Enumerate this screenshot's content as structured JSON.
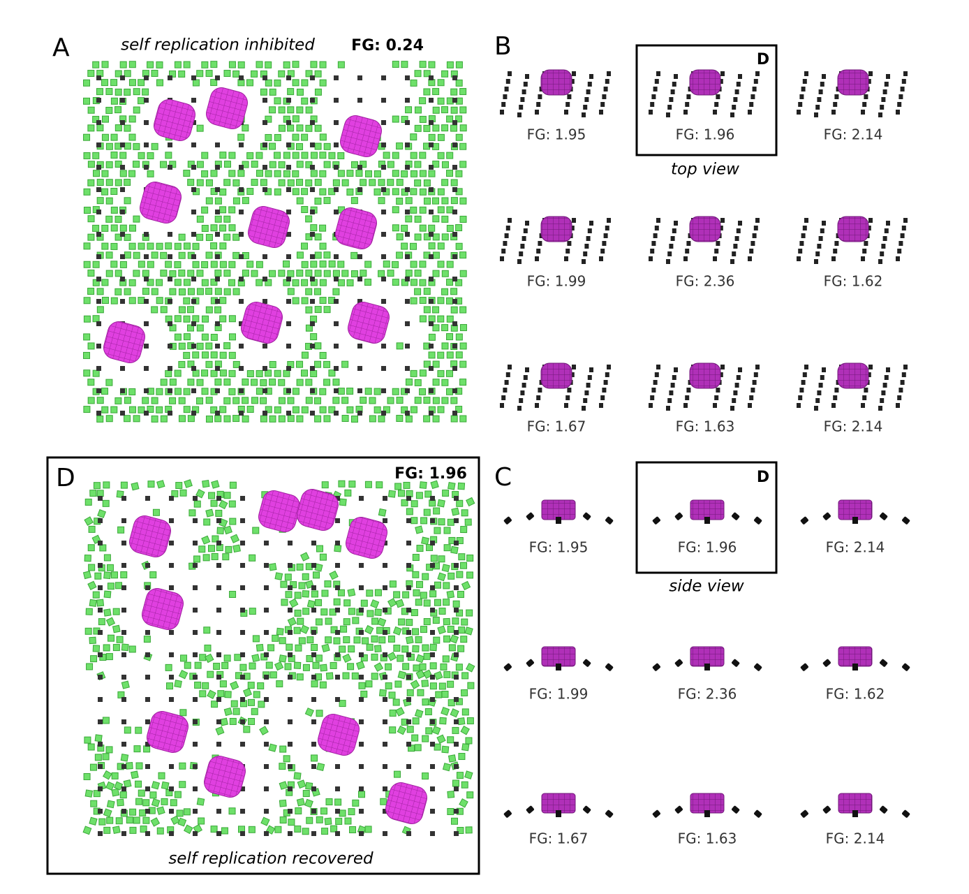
{
  "panels": {
    "A": {
      "label": "A",
      "caption": "self replication inhibited",
      "fg": "FG: 0.24"
    },
    "B": {
      "label": "B",
      "highlight": "D",
      "view": "top view",
      "items": [
        "FG: 1.95",
        "FG: 1.96",
        "FG: 2.14",
        "FG: 1.99",
        "FG: 2.36",
        "FG: 1.62",
        "FG: 1.67",
        "FG: 1.63",
        "FG: 2.14"
      ]
    },
    "C": {
      "label": "C",
      "highlight": "D",
      "view": "side view",
      "items": [
        "FG: 1.95",
        "FG: 1.96",
        "FG: 2.14",
        "FG: 1.99",
        "FG: 2.36",
        "FG: 1.62",
        "FG: 1.67",
        "FG: 1.63",
        "FG: 2.14"
      ]
    },
    "D": {
      "label": "D",
      "fg": "FG: 1.96",
      "caption": "self replication recovered"
    }
  }
}
